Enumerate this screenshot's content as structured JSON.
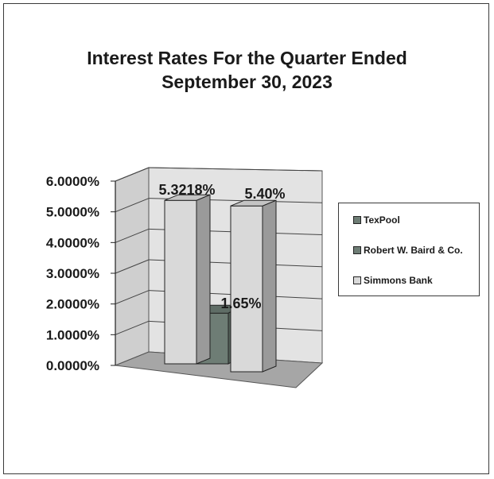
{
  "chart_data": {
    "type": "bar",
    "title_lines": [
      "Interest Rates For the Quarter Ended",
      "September 30, 2023"
    ],
    "categories": [
      ""
    ],
    "series": [
      {
        "name": "TexPool",
        "value": 5.3218,
        "label": "5.3218%",
        "color": "#d9d9d9"
      },
      {
        "name": "Robert W. Baird & Co.",
        "value": 1.65,
        "label": "1.65%",
        "color": "#6e7d75"
      },
      {
        "name": "Simmons Bank",
        "value": 5.4,
        "label": "5.40%",
        "color": "#d9d9d9"
      }
    ],
    "y_ticks": [
      "0.0000%",
      "1.0000%",
      "2.0000%",
      "3.0000%",
      "4.0000%",
      "5.0000%",
      "6.0000%"
    ],
    "ylim": [
      0,
      6
    ],
    "grid": true,
    "three_d": true,
    "legend_position": "right",
    "colors": {
      "wall": "#e3e3e3",
      "floor": "#a6a6a6",
      "swatch_texpool": "#6e7d75"
    }
  }
}
